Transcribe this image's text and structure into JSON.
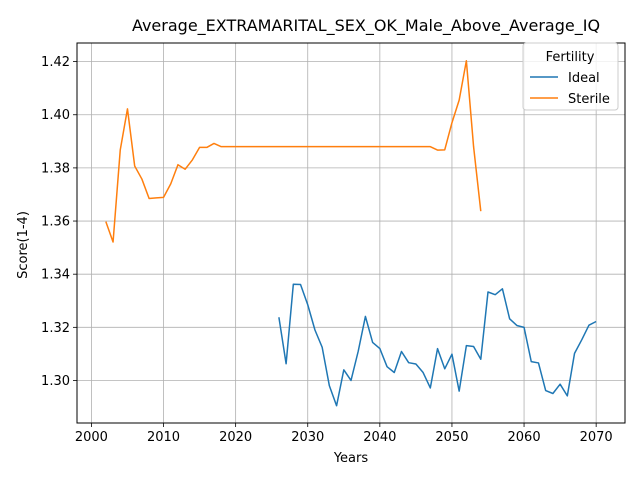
{
  "chart_data": {
    "type": "line",
    "title": "Average_EXTRAMARITAL_SEX_OK_Male_Above_Average_IQ",
    "xlabel": "Years",
    "ylabel": "Score(1-4)",
    "xlim": [
      1998,
      2074
    ],
    "ylim": [
      1.284,
      1.427
    ],
    "xticks": [
      2000,
      2010,
      2020,
      2030,
      2040,
      2050,
      2060,
      2070
    ],
    "yticks": [
      1.3,
      1.32,
      1.34,
      1.36,
      1.38,
      1.4,
      1.42
    ],
    "ytick_labels": [
      "1.30",
      "1.32",
      "1.34",
      "1.36",
      "1.38",
      "1.40",
      "1.42"
    ],
    "grid": true,
    "legend": {
      "title": "Fertility",
      "position": "top-right"
    },
    "series": [
      {
        "name": "Ideal",
        "color": "#1f77b4",
        "x": [
          2026,
          2027,
          2028,
          2029,
          2030,
          2031,
          2032,
          2033,
          2034,
          2035,
          2036,
          2037,
          2038,
          2039,
          2040,
          2041,
          2042,
          2043,
          2044,
          2045,
          2046,
          2047,
          2048,
          2049,
          2050,
          2051,
          2052,
          2053,
          2054,
          2055,
          2056,
          2057,
          2058,
          2059,
          2060,
          2061,
          2062,
          2063,
          2064,
          2065,
          2066,
          2067,
          2068,
          2069,
          2070
        ],
        "y": [
          1.3238,
          1.3063,
          1.3362,
          1.3361,
          1.3285,
          1.319,
          1.3125,
          1.298,
          1.2905,
          1.304,
          1.3,
          1.311,
          1.3241,
          1.3143,
          1.312,
          1.3052,
          1.303,
          1.3109,
          1.3067,
          1.3062,
          1.303,
          1.2972,
          1.312,
          1.3044,
          1.3099,
          1.296,
          1.3131,
          1.3128,
          1.308,
          1.3333,
          1.3323,
          1.3345,
          1.3232,
          1.3207,
          1.32,
          1.3071,
          1.3066,
          1.2962,
          1.2951,
          1.2986,
          1.2942,
          1.3102,
          1.3153,
          1.3208,
          1.3222
        ]
      },
      {
        "name": "Sterile",
        "color": "#ff7f0e",
        "x": [
          2002,
          2003,
          2004,
          2005,
          2006,
          2007,
          2008,
          2009,
          2010,
          2011,
          2012,
          2013,
          2014,
          2015,
          2016,
          2017,
          2018,
          2019,
          2020,
          2021,
          2022,
          2023,
          2024,
          2025,
          2026,
          2027,
          2028,
          2029,
          2030,
          2031,
          2032,
          2033,
          2034,
          2035,
          2036,
          2037,
          2038,
          2039,
          2040,
          2041,
          2042,
          2043,
          2044,
          2045,
          2046,
          2047,
          2048,
          2049,
          2050,
          2051,
          2052,
          2053,
          2054
        ],
        "y": [
          1.3598,
          1.3521,
          1.3868,
          1.4022,
          1.3807,
          1.3758,
          1.3685,
          1.3687,
          1.3689,
          1.374,
          1.3812,
          1.3795,
          1.383,
          1.3877,
          1.3877,
          1.3892,
          1.388,
          1.388,
          1.388,
          1.388,
          1.388,
          1.388,
          1.388,
          1.388,
          1.388,
          1.388,
          1.388,
          1.388,
          1.388,
          1.388,
          1.388,
          1.388,
          1.388,
          1.388,
          1.388,
          1.388,
          1.388,
          1.388,
          1.388,
          1.388,
          1.388,
          1.388,
          1.388,
          1.388,
          1.388,
          1.388,
          1.3867,
          1.3868,
          1.397,
          1.4055,
          1.4203,
          1.388,
          1.3637
        ]
      }
    ]
  }
}
